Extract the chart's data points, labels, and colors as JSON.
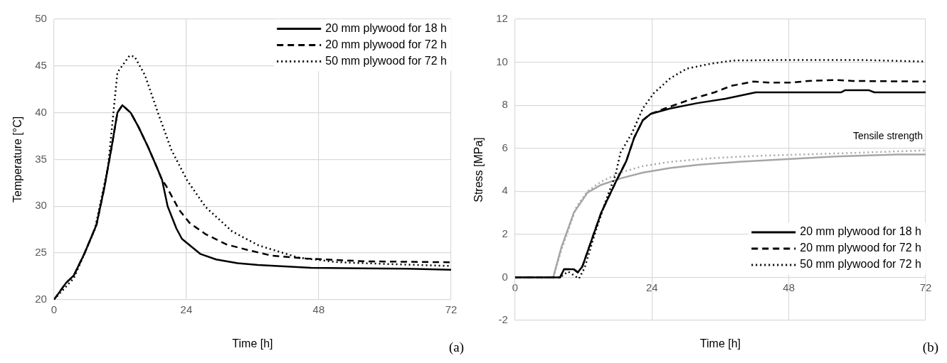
{
  "chart_data": [
    {
      "type": "line",
      "xlabel": "Time [h]",
      "ylabel": "Temperature [°C]",
      "xlim": [
        0,
        72
      ],
      "xticks": [
        0,
        24,
        48,
        72
      ],
      "ylim": [
        20,
        50
      ],
      "yticks": [
        20,
        25,
        30,
        35,
        40,
        45,
        50
      ],
      "grid": true,
      "legend": "top right",
      "marker": "none",
      "annotations": [
        "(a)"
      ],
      "series": [
        {
          "name": "20 mm plywood for 18 h",
          "color": "#000000",
          "line_style": "solid",
          "x": [
            0,
            2.2,
            3.6,
            5.5,
            7.7,
            9.1,
            10.5,
            11.5,
            12.4,
            13.9,
            15.3,
            17,
            18.4,
            19.6,
            20.6,
            22.2,
            23.2,
            26.5,
            29.4,
            33.3,
            37,
            46.6,
            64,
            72
          ],
          "values": [
            20,
            21.8,
            22.6,
            24.9,
            28,
            31.9,
            36.5,
            40,
            40.8,
            40,
            38.5,
            36.4,
            34.5,
            32.8,
            30,
            27.6,
            26.5,
            24.9,
            24.3,
            23.9,
            23.7,
            23.4,
            23.3,
            23.2
          ]
        },
        {
          "name": "20 mm plywood for 72 h",
          "color": "#000000",
          "line_style": "dashed",
          "x": [
            0,
            2.2,
            3.6,
            5.5,
            7.7,
            9.1,
            10.5,
            11.5,
            12.4,
            13.9,
            15.3,
            17,
            18.4,
            19.6,
            20.3,
            22.7,
            24.6,
            27.5,
            31.3,
            35.2,
            39.5,
            45.7,
            56.3,
            72
          ],
          "values": [
            20,
            21.8,
            22.6,
            24.9,
            28,
            31.9,
            36.5,
            40,
            40.8,
            40,
            38.5,
            36.4,
            34.5,
            32.8,
            32.2,
            29.6,
            28.2,
            27,
            25.9,
            25.3,
            24.7,
            24.4,
            24.1,
            24
          ]
        },
        {
          "name": "50 mm plywood for 72 h",
          "color": "#000000",
          "line_style": "dotted",
          "x": [
            0,
            3.6,
            7.4,
            9.8,
            11.5,
            13.7,
            14.6,
            16.5,
            18.9,
            21.3,
            24.2,
            27.5,
            32.3,
            37.1,
            44.3,
            51.5,
            61,
            72
          ],
          "values": [
            20,
            22.3,
            27.5,
            34.2,
            44.3,
            46.1,
            46,
            44,
            39.9,
            36,
            32.7,
            29.9,
            27.3,
            25.8,
            24.5,
            24,
            23.8,
            23.6
          ]
        }
      ]
    },
    {
      "type": "line",
      "xlabel": "Time [h]",
      "ylabel": "Stress [MPa]",
      "xlim": [
        0,
        72
      ],
      "xticks": [
        0,
        24,
        48,
        72
      ],
      "ylim": [
        -2,
        12
      ],
      "yticks": [
        -2,
        0,
        2,
        4,
        6,
        8,
        10,
        12
      ],
      "grid": true,
      "legend": "bottom right",
      "marker": "none",
      "annotations": [
        "Tensile strength",
        "(b)"
      ],
      "series": [
        {
          "name": "20 mm plywood for 18 h",
          "color": "#000000",
          "line_style": "solid",
          "x": [
            0,
            7.9,
            8.6,
            10.3,
            11,
            11.8,
            13.7,
            15.1,
            17.6,
            19.5,
            20.9,
            22.4,
            23.8,
            27.2,
            32,
            36.9,
            42.2,
            57.2,
            57.9,
            62,
            63,
            72
          ],
          "values": [
            0,
            0,
            0.38,
            0.38,
            0.23,
            0.5,
            1.94,
            3,
            4.4,
            5.4,
            6.5,
            7.3,
            7.6,
            7.85,
            8.1,
            8.3,
            8.6,
            8.6,
            8.7,
            8.7,
            8.6,
            8.6
          ]
        },
        {
          "name": "20 mm plywood for 72 h",
          "color": "#000000",
          "line_style": "dashed",
          "x": [
            0,
            7.9,
            8.6,
            10.3,
            11,
            11.8,
            13.7,
            15.1,
            17.6,
            19.5,
            20.9,
            22.4,
            23.8,
            26.8,
            31.1,
            35,
            37.9,
            41.8,
            44.6,
            48.5,
            51.4,
            56.3,
            59.2,
            72
          ],
          "values": [
            0,
            0,
            0.38,
            0.38,
            0.23,
            0.5,
            1.94,
            3,
            4.4,
            5.4,
            6.5,
            7.3,
            7.6,
            7.9,
            8.3,
            8.6,
            8.9,
            9.1,
            9.05,
            9.05,
            9.13,
            9.17,
            9.13,
            9.1
          ]
        },
        {
          "name": "50 mm plywood for 72 h",
          "color": "#000000",
          "line_style": "dotted",
          "x": [
            0,
            7.9,
            9.3,
            11.2,
            12.2,
            14.2,
            16.1,
            17.6,
            18.5,
            20.5,
            22.4,
            24.3,
            27.2,
            30.1,
            34.5,
            38.4,
            46.6,
            61.1,
            72
          ],
          "values": [
            0,
            0,
            0.27,
            -0.06,
            0.44,
            2.2,
            3.7,
            4.75,
            5.8,
            6.7,
            7.85,
            8.55,
            9.25,
            9.7,
            9.94,
            10.08,
            10.1,
            10.1,
            10.03
          ]
        },
        {
          "color": "#a6a6a6",
          "line_style": "solid",
          "x": [
            0,
            6.7,
            8.1,
            10.3,
            12.7,
            15.1,
            18.5,
            22.4,
            27.2,
            32.1,
            39.3,
            46.6,
            56.3,
            67,
            72
          ],
          "values": [
            0,
            0,
            1.37,
            3,
            3.94,
            4.3,
            4.6,
            4.87,
            5.08,
            5.23,
            5.37,
            5.48,
            5.62,
            5.71,
            5.71
          ]
        },
        {
          "color": "#a6a6a6",
          "line_style": "dotted",
          "x": [
            0,
            6.7,
            8.1,
            10.8,
            12.7,
            15.1,
            18.5,
            22.4,
            27.2,
            34.5,
            41.8,
            51.5,
            61,
            72
          ],
          "values": [
            0,
            0,
            1.25,
            3.3,
            4,
            4.45,
            4.87,
            5.17,
            5.37,
            5.54,
            5.64,
            5.72,
            5.8,
            5.9
          ]
        }
      ]
    }
  ]
}
